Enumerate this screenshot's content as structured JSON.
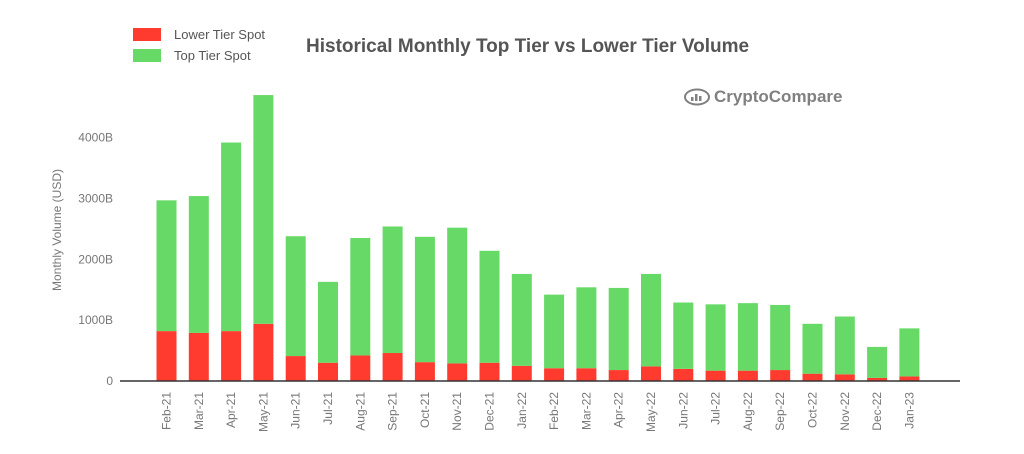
{
  "chart_data": {
    "type": "bar",
    "stacked": true,
    "title": "Historical Monthly Top Tier vs Lower Tier Volume",
    "ylabel": "Monthly Volume (USD)",
    "xlabel": "",
    "ylim": [
      0,
      4800
    ],
    "y_ticks": [
      "0",
      "1000B",
      "2000B",
      "3000B",
      "4000B"
    ],
    "grid": false,
    "legend_position": "top-left",
    "watermark": "CryptoCompare",
    "categories": [
      "Feb-21",
      "Mar-21",
      "Apr-21",
      "May-21",
      "Jun-21",
      "Jul-21",
      "Aug-21",
      "Sep-21",
      "Oct-21",
      "Nov-21",
      "Dec-21",
      "Jan-22",
      "Feb-22",
      "Mar-22",
      "Apr-22",
      "May-22",
      "Jun-22",
      "Jul-22",
      "Aug-22",
      "Sep-22",
      "Oct-22",
      "Nov-22",
      "Dec-22",
      "Jan-23"
    ],
    "series": [
      {
        "name": "Lower Tier Spot",
        "color": "#ff3b30",
        "values": [
          820,
          790,
          820,
          940,
          410,
          300,
          420,
          460,
          310,
          290,
          300,
          250,
          210,
          210,
          180,
          240,
          200,
          170,
          170,
          180,
          120,
          110,
          50,
          75
        ]
      },
      {
        "name": "Top Tier Spot",
        "color": "#66d966",
        "values": [
          2150,
          2250,
          3100,
          3760,
          1970,
          1330,
          1930,
          2080,
          2060,
          2230,
          1840,
          1510,
          1210,
          1330,
          1350,
          1520,
          1090,
          1090,
          1110,
          1070,
          820,
          950,
          510,
          790
        ]
      }
    ]
  }
}
